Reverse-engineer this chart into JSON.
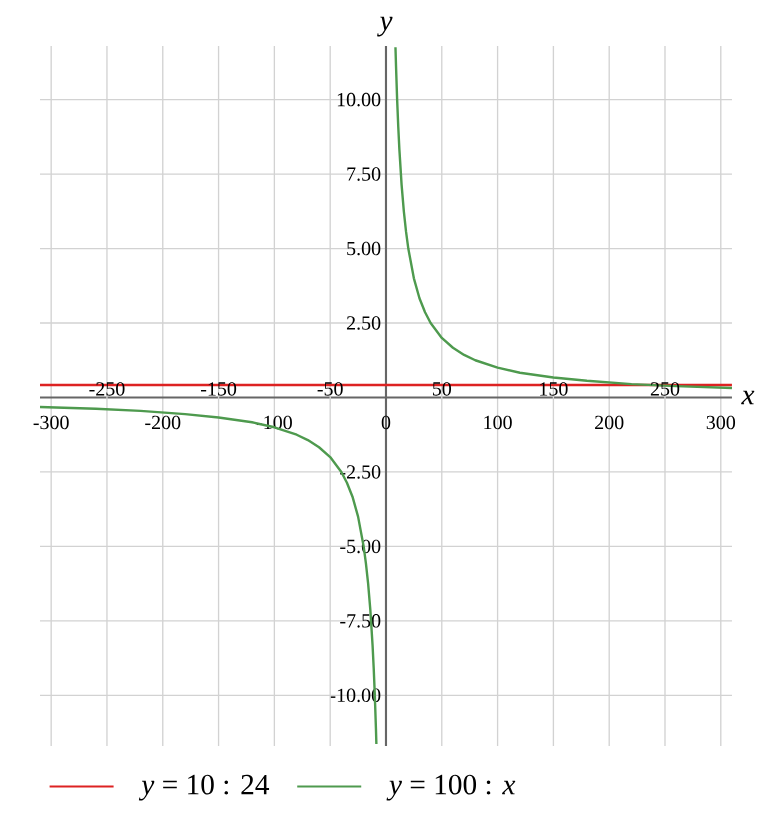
{
  "chart_data": {
    "type": "line",
    "xlabel": "x",
    "ylabel": "y",
    "xlim": [
      -310,
      310
    ],
    "ylim": [
      -11.7,
      11.8
    ],
    "xticks": [
      -300,
      -200,
      -100,
      0,
      100,
      200,
      300
    ],
    "x2lim": [
      -310,
      310
    ],
    "x2ticks": [
      -250,
      -150,
      -50,
      50,
      150,
      250
    ],
    "yticks": [
      {
        "value": -10,
        "label": "-10.00"
      },
      {
        "value": -7.5,
        "label": "-7.50"
      },
      {
        "value": -5,
        "label": "-5.00"
      },
      {
        "value": -2.5,
        "label": "-2.50"
      },
      {
        "value": 2.5,
        "label": "2.50"
      },
      {
        "value": 5,
        "label": "5.00"
      },
      {
        "value": 7.5,
        "label": "7.50"
      },
      {
        "value": 10,
        "label": "10.00"
      }
    ],
    "grid": true,
    "legend": "bottom",
    "series": [
      {
        "name": "*y* = 10 : 24",
        "color": "#dd2222",
        "x": [
          -310,
          310
        ],
        "values": [
          0.42,
          0.42
        ]
      },
      {
        "name": "*y* = 100 : *x*",
        "color": "#4e9a4e",
        "x": [
          -310,
          -260,
          -220,
          -180,
          -150,
          -120,
          -100,
          -80,
          -70,
          -60,
          -50,
          -40,
          -35,
          -30,
          -25,
          -20,
          -18,
          -16,
          -14,
          -12,
          -11,
          -10,
          -9,
          -8.6,
          0,
          8.5,
          9,
          10,
          11,
          12,
          14,
          16,
          18,
          20,
          25,
          30,
          35,
          40,
          50,
          60,
          70,
          80,
          100,
          120,
          150,
          180,
          220,
          260,
          310
        ],
        "values": [
          -0.32,
          -0.38,
          -0.45,
          -0.56,
          -0.67,
          -0.83,
          -1.0,
          -1.25,
          -1.43,
          -1.67,
          -2.0,
          -2.5,
          -2.86,
          -3.33,
          -4.0,
          -5.0,
          -5.56,
          -6.25,
          -7.14,
          -8.33,
          -9.09,
          -10.0,
          -11.11,
          -11.63,
          null,
          11.76,
          11.11,
          10.0,
          9.09,
          8.33,
          7.14,
          6.25,
          5.56,
          5.0,
          4.0,
          3.33,
          2.86,
          2.5,
          2.0,
          1.67,
          1.43,
          1.25,
          1.0,
          0.83,
          0.67,
          0.56,
          0.45,
          0.38,
          0.32
        ]
      }
    ]
  }
}
